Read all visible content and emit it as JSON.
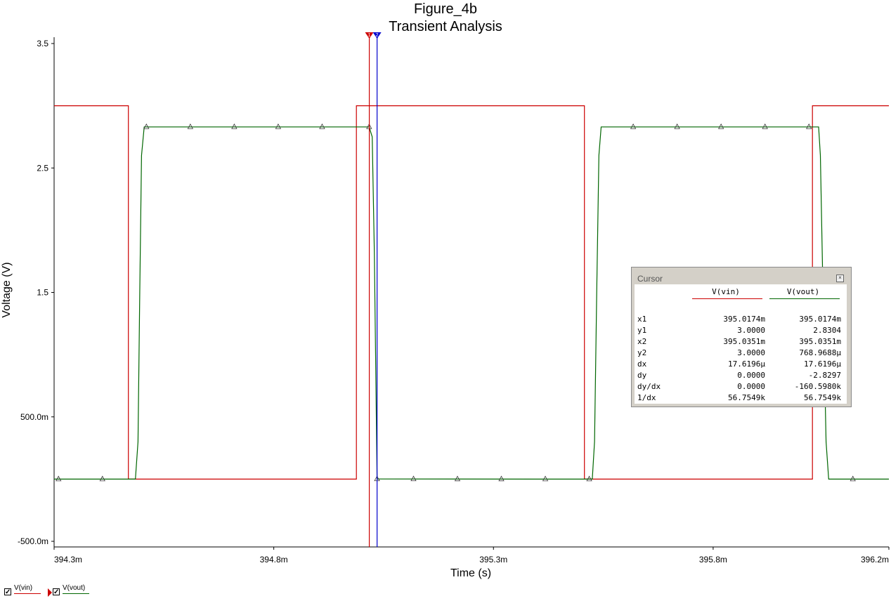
{
  "chart_data": {
    "type": "line",
    "title": "Figure_4b",
    "subtitle": "Transient Analysis",
    "xlabel": "Time (s)",
    "ylabel": "Voltage (V)",
    "xlim": [
      0.3943,
      0.3962
    ],
    "ylim": [
      -0.5,
      3.5
    ],
    "x_ticks": [
      0.3943,
      0.3948,
      0.3953,
      0.3958,
      0.3962
    ],
    "x_tick_labels": [
      "394.3m",
      "394.8m",
      "395.3m",
      "395.8m",
      "396.2m"
    ],
    "y_ticks": [
      3.5,
      2.5,
      1.5,
      0.5,
      -0.5
    ],
    "y_tick_labels": [
      "3.5",
      "2.5",
      "1.5",
      "500.0m",
      "-500.0m"
    ],
    "grid": false,
    "legend_position": "bottom-left",
    "series": [
      {
        "name": "V(vin)",
        "color": "#cc0000",
        "x": [
          0.3943,
          0.394469,
          0.394469,
          0.394988,
          0.394988,
          0.395507,
          0.395507,
          0.396026,
          0.396026,
          0.3962
        ],
        "y": [
          3.0,
          3.0,
          0.0,
          0.0,
          3.0,
          3.0,
          0.0,
          0.0,
          3.0,
          3.0
        ]
      },
      {
        "name": "V(vout)",
        "color": "#006600",
        "x": [
          0.3943,
          0.394485,
          0.394491,
          0.394495,
          0.394499,
          0.394505,
          0.395017,
          0.395024,
          0.395029,
          0.395035,
          0.395507,
          0.395525,
          0.39553,
          0.395535,
          0.39554,
          0.395545,
          0.39604,
          0.396044,
          0.39605,
          0.396057,
          0.396063,
          0.3962
        ],
        "y": [
          0.0,
          0.0,
          0.3,
          1.5,
          2.6,
          2.83,
          2.83,
          2.75,
          1.8,
          0.0008,
          0.0,
          0.0,
          0.3,
          1.5,
          2.6,
          2.83,
          2.83,
          2.6,
          1.5,
          0.3,
          0.0,
          0.0
        ]
      }
    ],
    "vout_markers_x": [
      0.39431,
      0.39441,
      0.39451,
      0.39461,
      0.39471,
      0.39481,
      0.39491,
      0.395017,
      0.395035,
      0.395118,
      0.395218,
      0.395318,
      0.395418,
      0.395518,
      0.395618,
      0.395718,
      0.395818,
      0.395918,
      0.396018,
      0.396118,
      0.396218
    ],
    "cursors": [
      {
        "id": "1",
        "x": 0.3950174,
        "color": "#cc0000"
      },
      {
        "id": "2",
        "x": 0.3950351,
        "color": "#0000cc"
      }
    ]
  },
  "cursor_panel": {
    "title": "Cursor",
    "close_icon": "close-box-icon",
    "columns": [
      {
        "label": "V(vin)",
        "color": "#cc0000"
      },
      {
        "label": "V(vout)",
        "color": "#006600"
      }
    ],
    "rows": [
      {
        "label": "x1",
        "vin": "395.0174m",
        "vout": "395.0174m"
      },
      {
        "label": "y1",
        "vin": "3.0000",
        "vout": "2.8304"
      },
      {
        "label": "x2",
        "vin": "395.0351m",
        "vout": "395.0351m"
      },
      {
        "label": "y2",
        "vin": "3.0000",
        "vout": "768.9688μ"
      },
      {
        "label": "dx",
        "vin": "17.6196μ",
        "vout": "17.6196μ"
      },
      {
        "label": "dy",
        "vin": "0.0000",
        "vout": "-2.8297"
      },
      {
        "label": "dy/dx",
        "vin": "0.0000",
        "vout": "-160.5980k"
      },
      {
        "label": "1/dx",
        "vin": "56.7549k",
        "vout": "56.7549k"
      }
    ]
  },
  "legend": [
    {
      "label": "V(vin)",
      "color": "#cc0000",
      "checked": "✓"
    },
    {
      "label": "V(vout)",
      "color": "#006600",
      "checked": "✓"
    }
  ]
}
